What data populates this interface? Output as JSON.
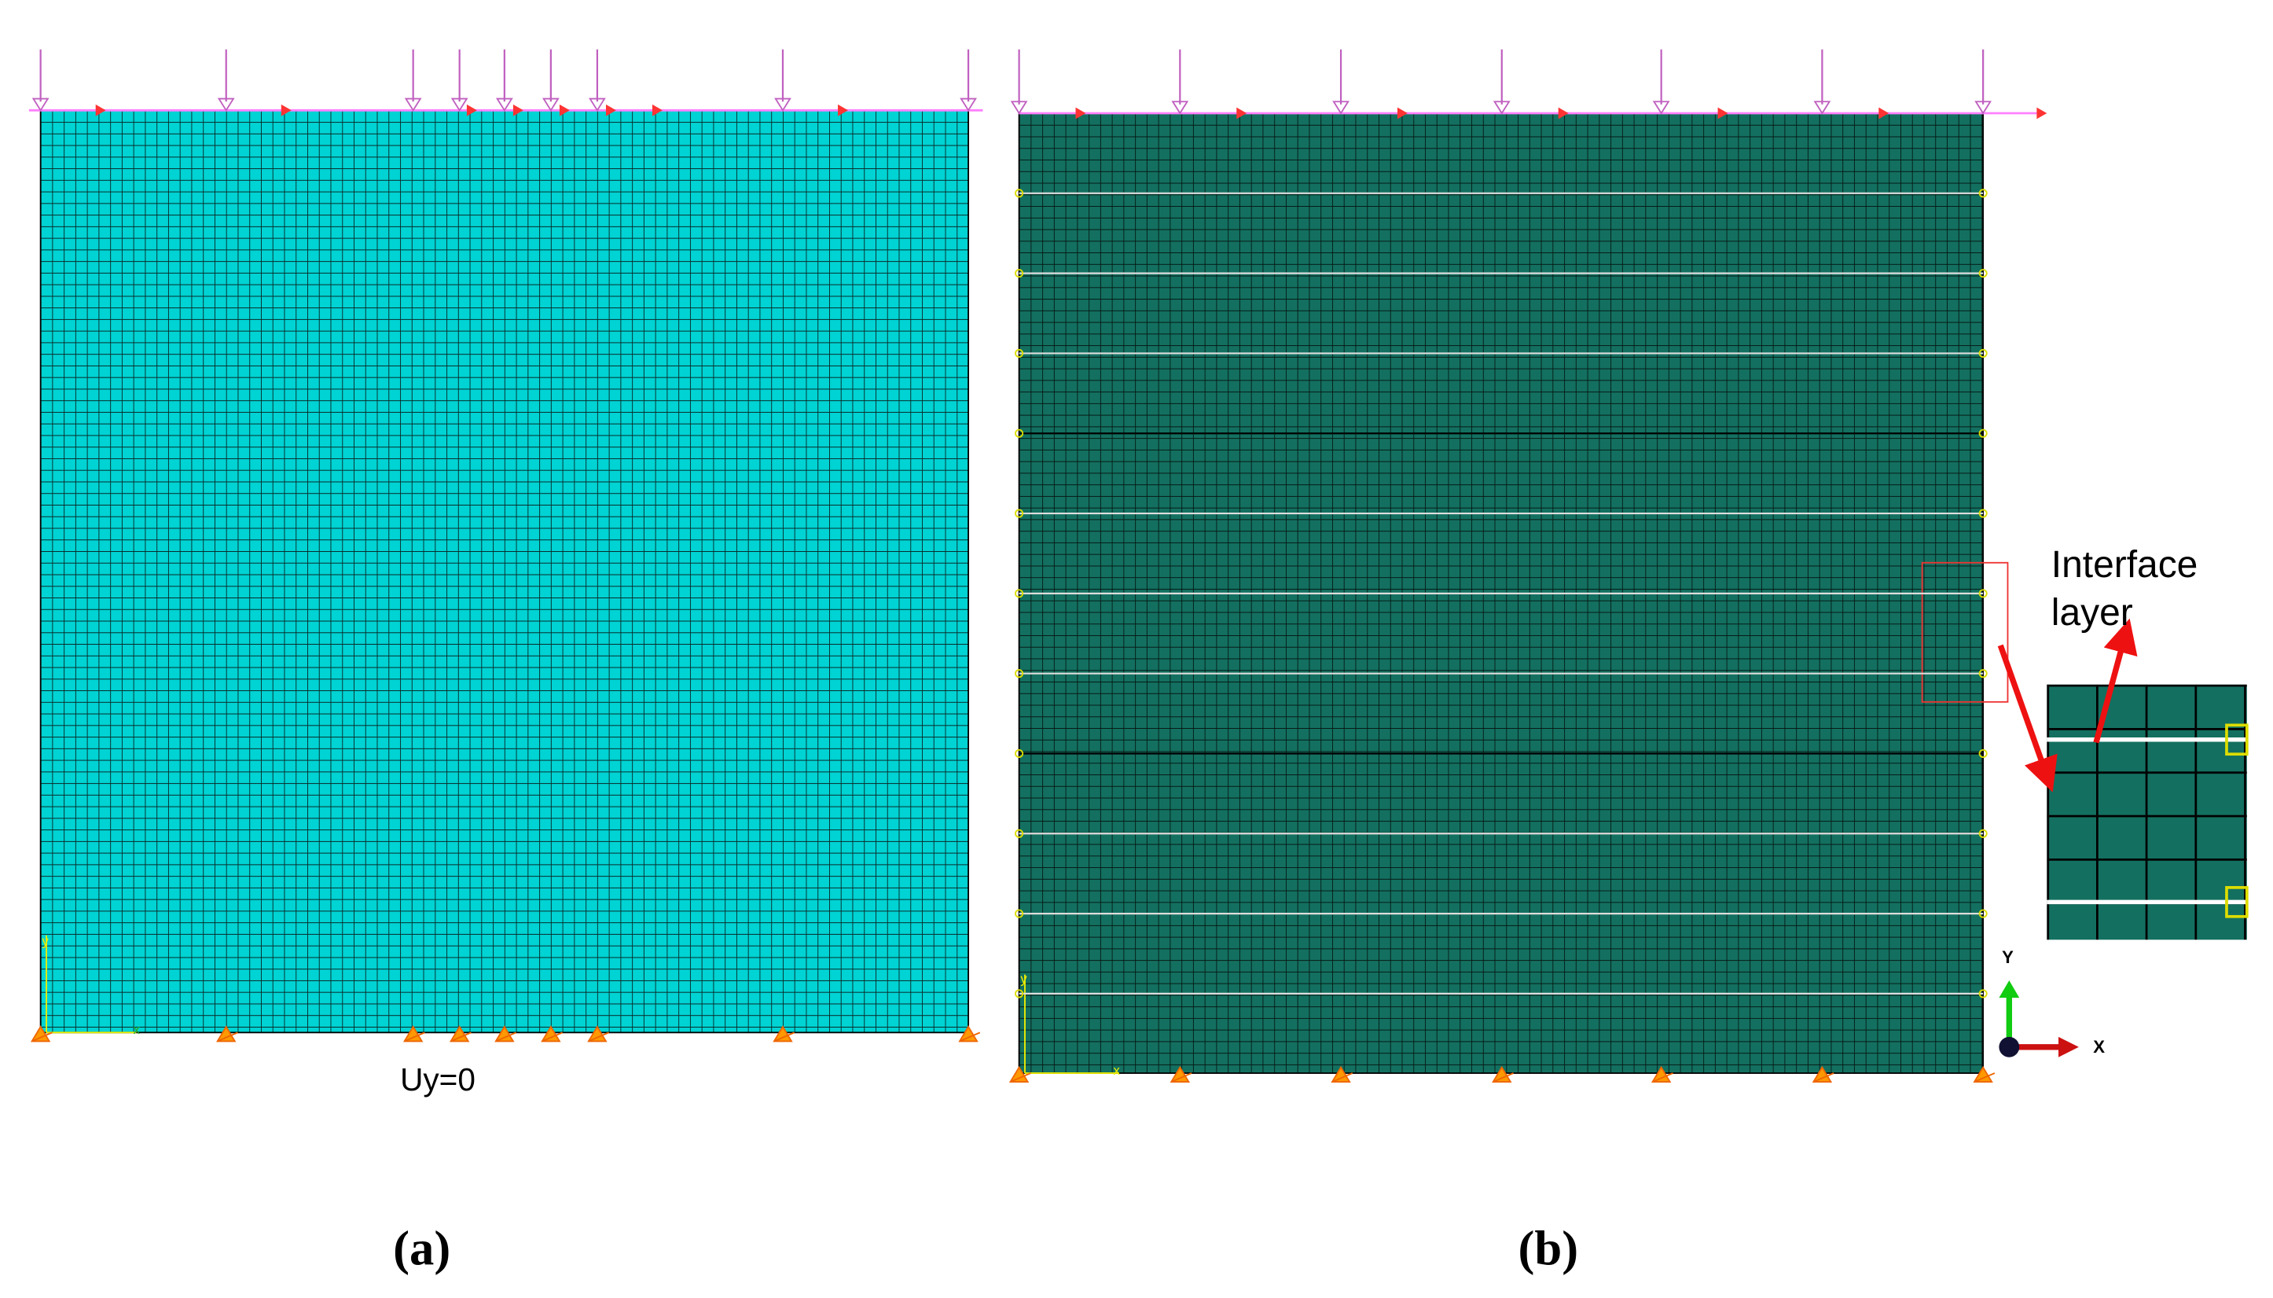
{
  "panel_a": {
    "label": "(a)",
    "boundary_condition": "Uy=0",
    "axis_x": "x",
    "axis_y": "y"
  },
  "panel_b": {
    "label": "(b)",
    "axis_x": "x",
    "axis_y": "y"
  },
  "inset": {
    "label_line1": "Interface",
    "label_line2": "layer"
  },
  "triad": {
    "y": "Y",
    "x": "X"
  }
}
